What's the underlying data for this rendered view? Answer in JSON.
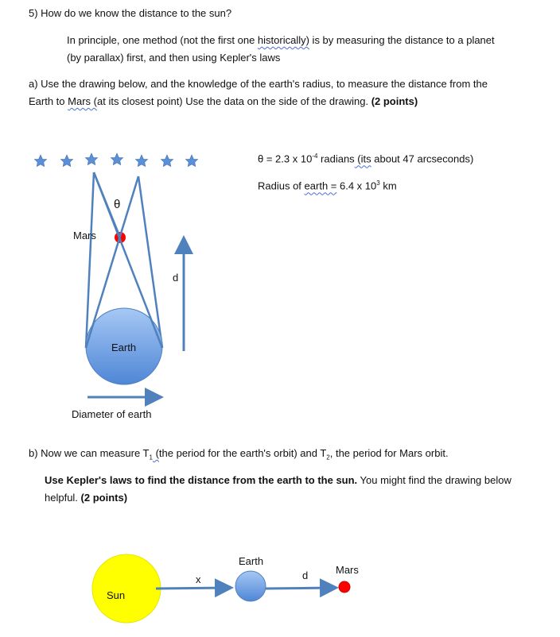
{
  "question": {
    "title": "5) How do we know the distance to the sun?",
    "intro_line1_pre": "In principle, one method (not the first one ",
    "intro_line1_squiggle": "historically)",
    "intro_line1_post": " is by measuring the distance to a planet",
    "intro_line2": "(by parallax) first, and then using Kepler's laws"
  },
  "part_a": {
    "line1": "a) Use the drawing below, and the knowledge of the earth's radius, to measure the distance from the",
    "line2_pre": "Earth to ",
    "line2_squiggle": "Mars  (",
    "line2_post": "at its closest point)   Use the data on the side of the drawing.   ",
    "points": "(2 points)",
    "theta_value_pre": "θ = 2.3 x 10",
    "theta_exp": "-4",
    "theta_value_post": " radians",
    "theta_note_squiggle": "  (its",
    "theta_note_post": " about 47 arcseconds)",
    "radius_pre": "Radius of ",
    "radius_squiggle": "earth  =",
    "radius_post": "  6.4 x 10",
    "radius_exp": "3",
    "radius_unit": " km"
  },
  "diagram_a": {
    "theta_label": "θ",
    "mars_label": "Mars",
    "earth_label": "Earth",
    "d_label": "d",
    "diameter_label": "Diameter of earth",
    "star_count": 7,
    "star_color": "#5b8fd6",
    "line_color": "#4f81bd",
    "mars_color": "#ff0000",
    "earth_color": "#7fa9e8"
  },
  "part_b": {
    "line1_pre": "b)  Now we can measure T",
    "t1_sub": "1",
    "line1_squiggle": " (",
    "line1_mid": "the period for the earth's orbit)  and T",
    "t2_sub": "2",
    "line1_post": ", the period for Mars orbit.",
    "bold_line1": "Use Kepler's laws to find the distance from the earth to the sun.",
    "normal_line1": "  You might find the drawing below",
    "line2": "helpful.  ",
    "points": "(2 points)"
  },
  "diagram_b": {
    "sun_label": "Sun",
    "x_label": "x",
    "earth_label": "Earth",
    "d_label": "d",
    "mars_label": "Mars",
    "sun_color": "#ffff00"
  }
}
